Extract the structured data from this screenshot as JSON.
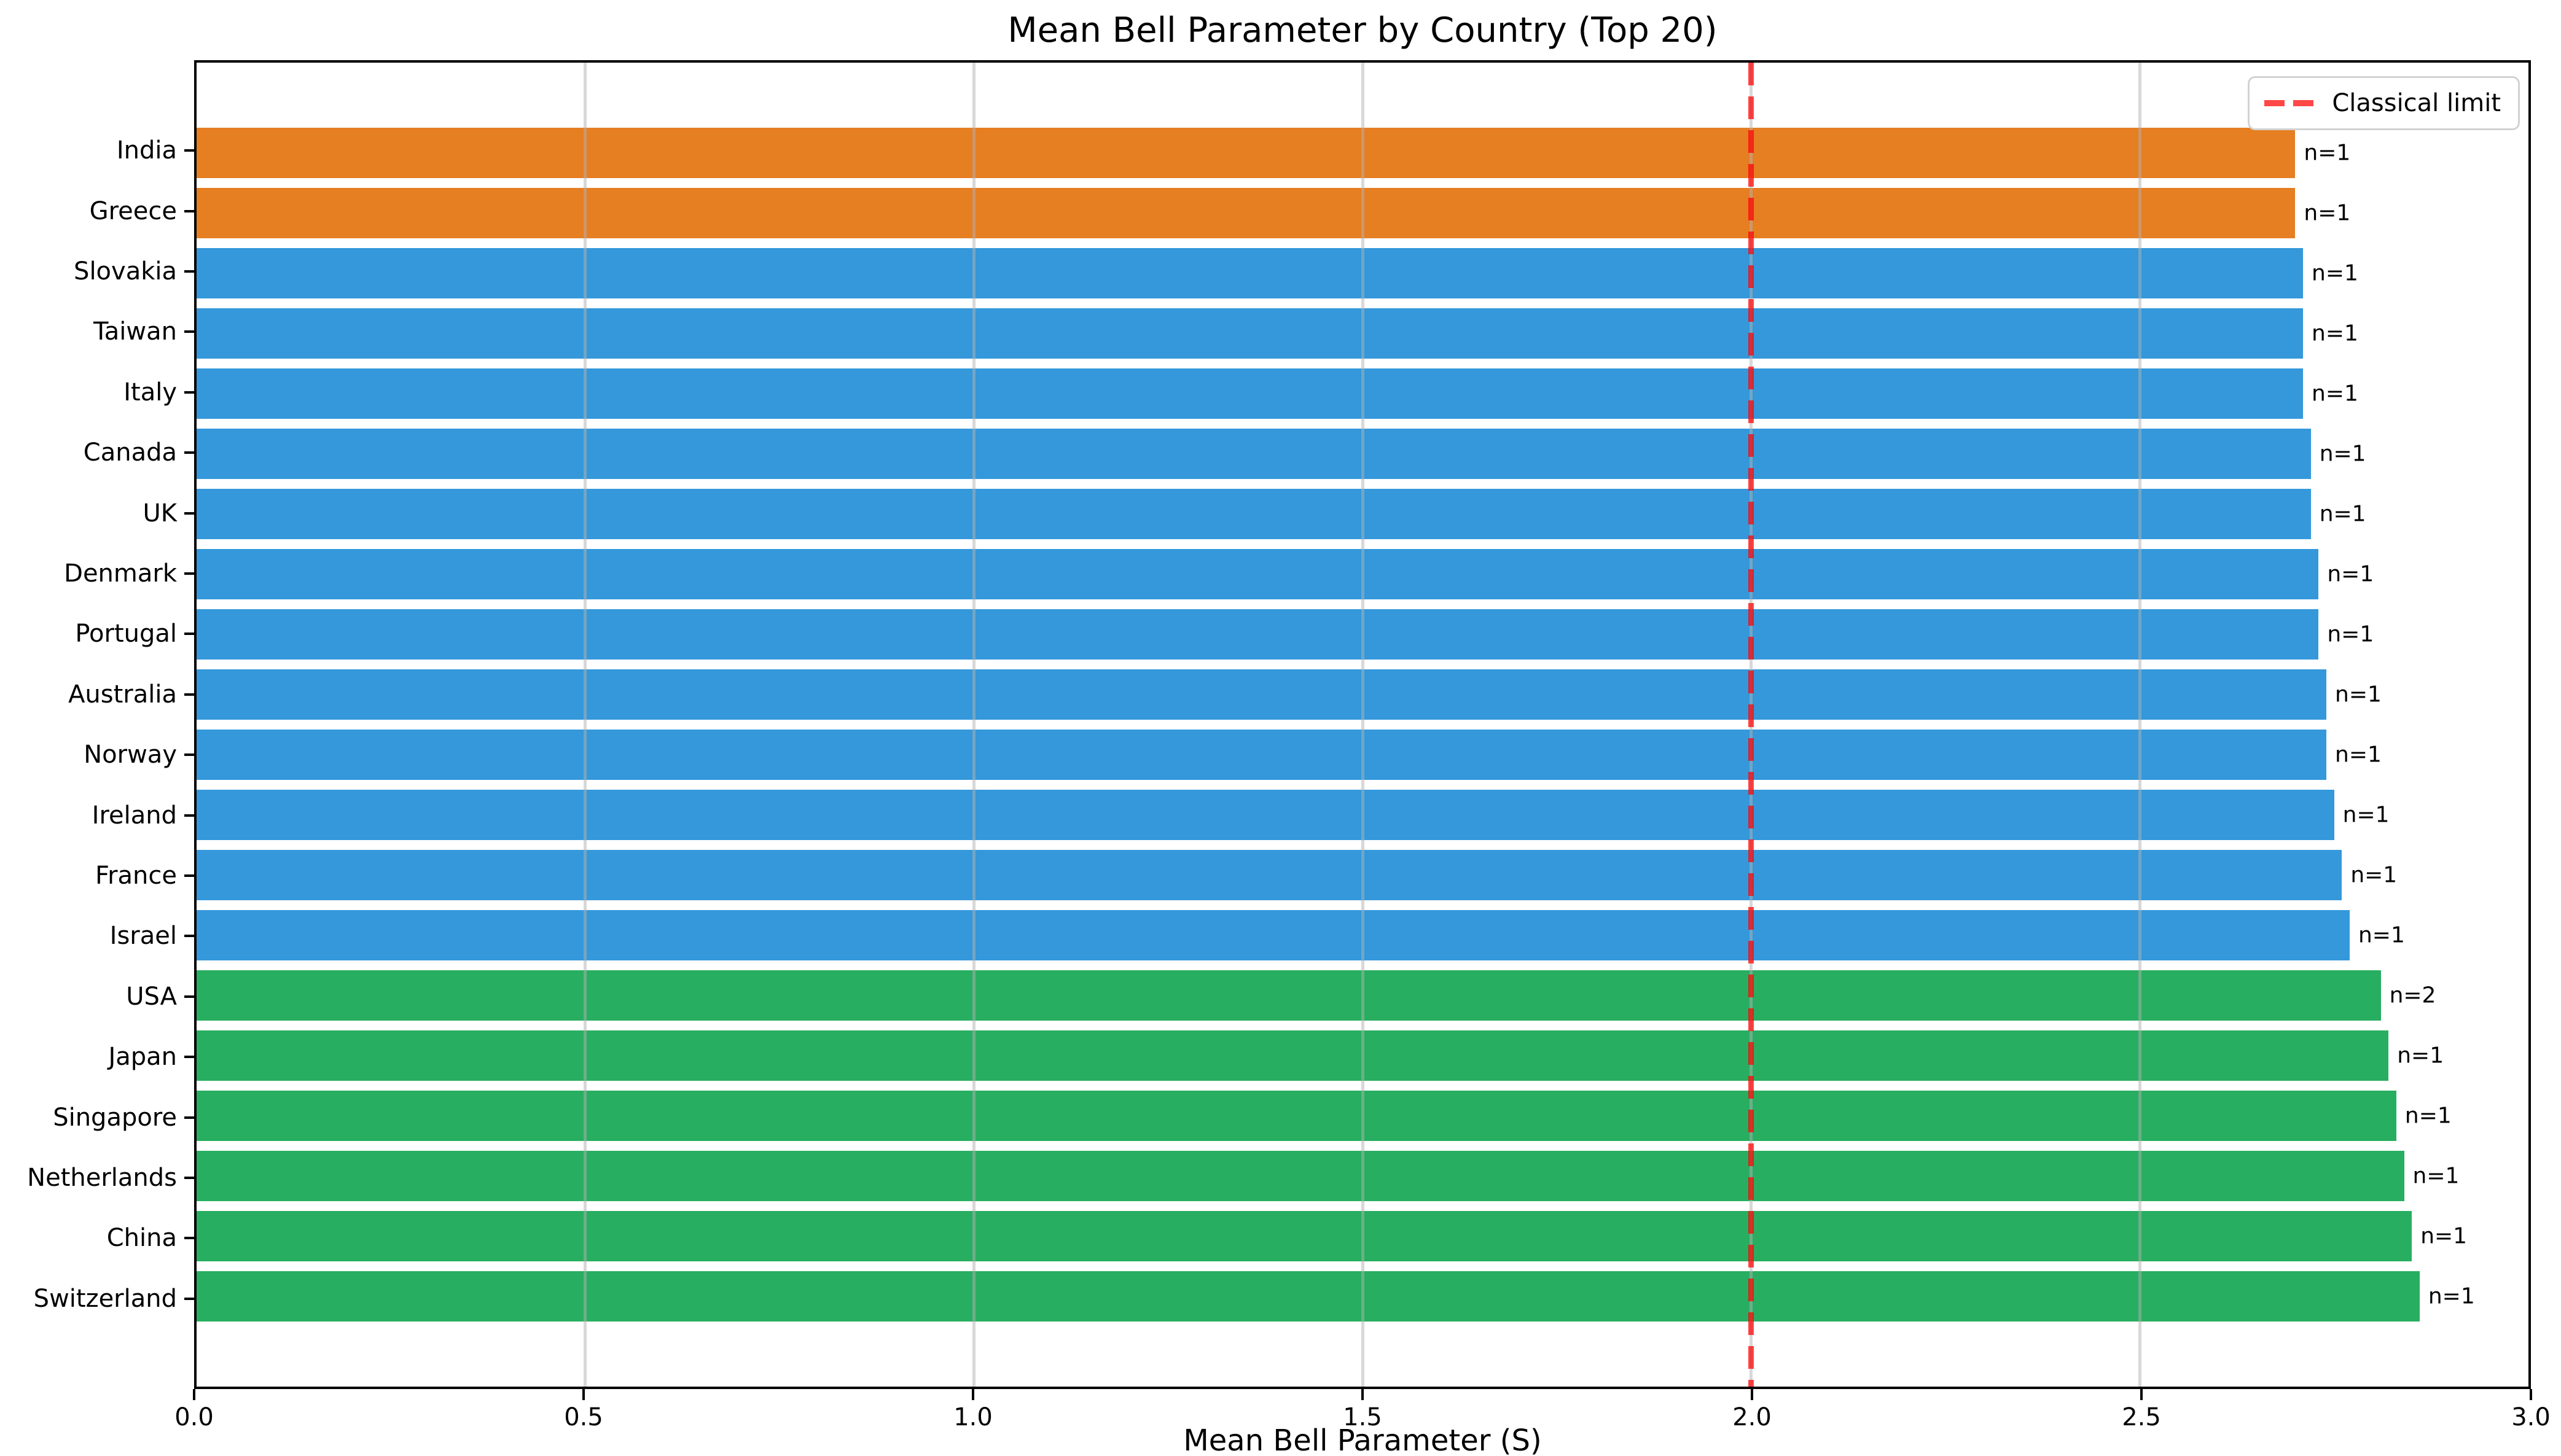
{
  "title": "Mean Bell Parameter by Country (Top 20)",
  "colors": {
    "orange": "#e67e22",
    "blue": "#3498db",
    "green": "#27ae60",
    "classical_limit_line": "rgba(255,0,0,0.72)",
    "gridline": "rgba(178,178,178,0.5)",
    "spine": "#000000",
    "legend_border": "#d2d2d2"
  },
  "chart_data": {
    "type": "bar",
    "orientation": "horizontal",
    "title": "Mean Bell Parameter by Country (Top 20)",
    "xlabel": "Mean Bell Parameter (S)",
    "xlim": [
      0.0,
      3.0
    ],
    "xtick_values": [
      0.0,
      0.5,
      1.0,
      1.5,
      2.0,
      2.5,
      3.0
    ],
    "xtick_labels": [
      "0.0",
      "0.5",
      "1.0",
      "1.5",
      "2.0",
      "2.5",
      "3.0"
    ],
    "grid": true,
    "categories": [
      "India",
      "Greece",
      "Slovakia",
      "Taiwan",
      "Italy",
      "Canada",
      "UK",
      "Denmark",
      "Portugal",
      "Australia",
      "Norway",
      "Ireland",
      "France",
      "Israel",
      "USA",
      "Japan",
      "Singapore",
      "Netherlands",
      "China",
      "Switzerland"
    ],
    "values": [
      2.7,
      2.7,
      2.71,
      2.71,
      2.71,
      2.72,
      2.72,
      2.73,
      2.73,
      2.74,
      2.74,
      2.75,
      2.76,
      2.77,
      2.81,
      2.82,
      2.83,
      2.84,
      2.85,
      2.86
    ],
    "bar_labels": [
      "n=1",
      "n=1",
      "n=1",
      "n=1",
      "n=1",
      "n=1",
      "n=1",
      "n=1",
      "n=1",
      "n=1",
      "n=1",
      "n=1",
      "n=1",
      "n=1",
      "n=2",
      "n=1",
      "n=1",
      "n=1",
      "n=1",
      "n=1"
    ],
    "bar_colors": [
      "#e67e22",
      "#e67e22",
      "#3498db",
      "#3498db",
      "#3498db",
      "#3498db",
      "#3498db",
      "#3498db",
      "#3498db",
      "#3498db",
      "#3498db",
      "#3498db",
      "#3498db",
      "#3498db",
      "#27ae60",
      "#27ae60",
      "#27ae60",
      "#27ae60",
      "#27ae60",
      "#27ae60"
    ],
    "reference_line": {
      "x": 2.0,
      "label": "Classical limit"
    },
    "legend": {
      "position": "upper right",
      "entries": [
        {
          "label": "Classical limit",
          "style": "dashed",
          "color": "rgba(255,0,0,0.72)"
        }
      ]
    }
  }
}
